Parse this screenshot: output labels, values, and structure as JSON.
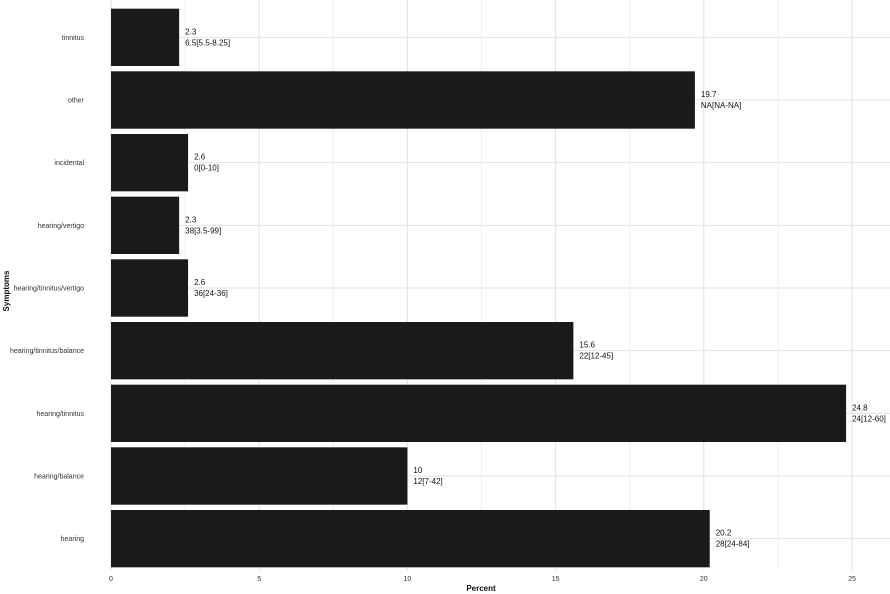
{
  "chart_data": {
    "type": "bar",
    "orientation": "horizontal",
    "xlabel": "Percent",
    "ylabel": "Symptoms",
    "xlim": [
      0,
      26
    ],
    "x_ticks": [
      0,
      5,
      10,
      15,
      20,
      25
    ],
    "grid": true,
    "categories": [
      "tinnitus",
      "other",
      "incidental",
      "hearing/vertigo",
      "hearing/tinnitus/vertigo",
      "hearing/tinnitus/balance",
      "hearing/tinnitus",
      "hearing/balance",
      "hearing"
    ],
    "values": [
      2.3,
      19.7,
      2.6,
      2.3,
      2.6,
      15.6,
      24.8,
      10,
      20.2
    ],
    "value_labels": [
      "2.3",
      "19.7",
      "2.6",
      "2.3",
      "2.6",
      "15.6",
      "24.8",
      "10",
      "20.2"
    ],
    "secondary_labels": [
      "6.5[5.5-8.25]",
      "NA[NA-NA]",
      "0[0-10]",
      "38[3.5-99]",
      "36[24-36]",
      "22[12-45]",
      "24[12-60]",
      "12[7-42]",
      "28[24-84]"
    ],
    "colors": {
      "bar": "#1a1a1a",
      "grid_major": "#e2e2e2",
      "grid_minor": "#efefef"
    }
  }
}
